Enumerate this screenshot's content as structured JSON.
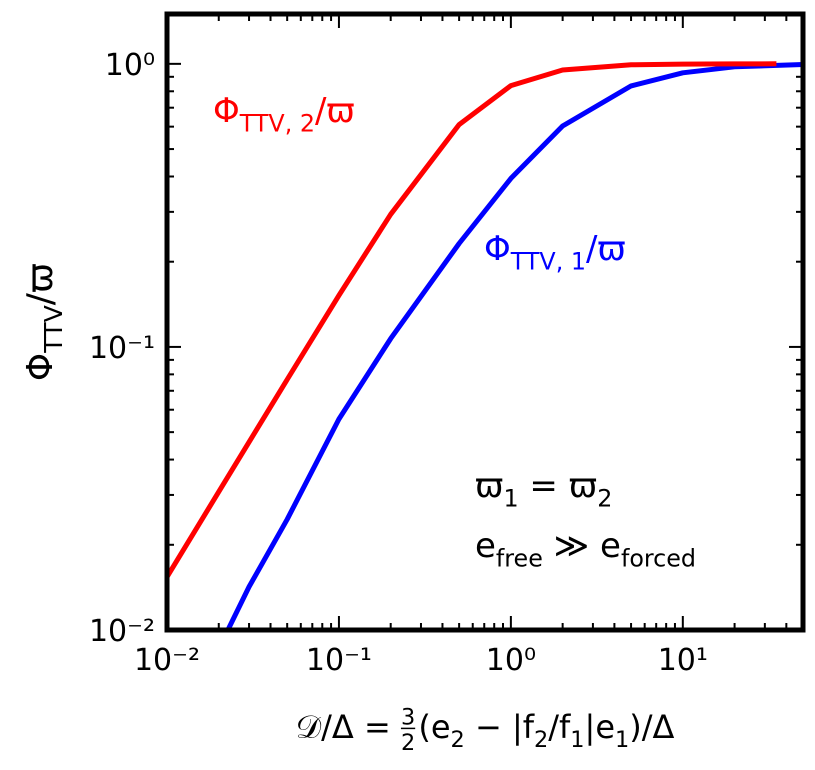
{
  "chart_data": {
    "type": "line",
    "log_x": true,
    "log_y": true,
    "grid": false,
    "xlim": [
      0.01,
      50
    ],
    "ylim": [
      0.01,
      1.5
    ],
    "xticks": [
      {
        "value": 0.01,
        "label": "10⁻²"
      },
      {
        "value": 0.1,
        "label": "10⁻¹"
      },
      {
        "value": 1,
        "label": "10⁰"
      },
      {
        "value": 10,
        "label": "10¹"
      }
    ],
    "yticks": [
      {
        "value": 0.01,
        "label": "10⁻²"
      },
      {
        "value": 0.1,
        "label": "10⁻¹"
      },
      {
        "value": 1,
        "label": "10⁰"
      }
    ],
    "xminorticks": [
      0.02,
      0.03,
      0.04,
      0.05,
      0.06,
      0.07,
      0.08,
      0.09,
      0.2,
      0.3,
      0.4,
      0.5,
      0.6,
      0.7,
      0.8,
      0.9,
      2,
      3,
      4,
      5,
      6,
      7,
      8,
      9,
      20,
      30,
      40
    ],
    "yminorticks": [
      0.02,
      0.03,
      0.04,
      0.05,
      0.06,
      0.07,
      0.08,
      0.09,
      0.2,
      0.3,
      0.4,
      0.5,
      0.6,
      0.7,
      0.8,
      0.9
    ],
    "ylabel": [
      {
        "text": "Φ"
      },
      {
        "text": "TTV",
        "style": "sub"
      },
      {
        "text": "/ϖ"
      }
    ],
    "xlabel": [
      {
        "text": "𝒟/Δ = "
      },
      {
        "text": "3",
        "style": "num"
      },
      {
        "text": "2",
        "style": "den"
      },
      {
        "text": "(e"
      },
      {
        "text": "2",
        "style": "sub"
      },
      {
        "text": " − |f"
      },
      {
        "text": "2",
        "style": "sub"
      },
      {
        "text": "/f"
      },
      {
        "text": "1",
        "style": "sub"
      },
      {
        "text": "|e"
      },
      {
        "text": "1",
        "style": "sub"
      },
      {
        "text": ")/Δ"
      }
    ],
    "series": [
      {
        "name": [
          {
            "text": "Φ"
          },
          {
            "text": "TTV, 1",
            "style": "sub"
          },
          {
            "text": "/ϖ"
          }
        ],
        "color": "#0000ff",
        "x": [
          0.0226,
          0.03,
          0.05,
          0.1,
          0.2,
          0.5,
          1,
          2,
          5,
          10,
          20,
          50
        ],
        "values": [
          0.01,
          0.0142,
          0.0246,
          0.0556,
          0.107,
          0.232,
          0.394,
          0.603,
          0.836,
          0.93,
          0.976,
          0.995
        ]
      },
      {
        "name": [
          {
            "text": "Φ"
          },
          {
            "text": "TTV, 2",
            "style": "sub"
          },
          {
            "text": "/ϖ"
          }
        ],
        "color": "#ff0000",
        "x": [
          0.01,
          0.02,
          0.05,
          0.1,
          0.2,
          0.5,
          1,
          2,
          5,
          10,
          20,
          35
        ],
        "values": [
          0.0154,
          0.0308,
          0.0767,
          0.152,
          0.294,
          0.61,
          0.838,
          0.951,
          0.992,
          0.998,
          0.9995,
          1.0
        ]
      }
    ],
    "annotations": [
      [
        {
          "text": "ϖ"
        },
        {
          "text": "1",
          "style": "sub"
        },
        {
          "text": " = ϖ"
        },
        {
          "text": "2",
          "style": "sub"
        }
      ],
      [
        {
          "text": "e"
        },
        {
          "text": "free",
          "style": "sub"
        },
        {
          "text": " ≫ e"
        },
        {
          "text": "forced",
          "style": "sub"
        }
      ]
    ]
  }
}
